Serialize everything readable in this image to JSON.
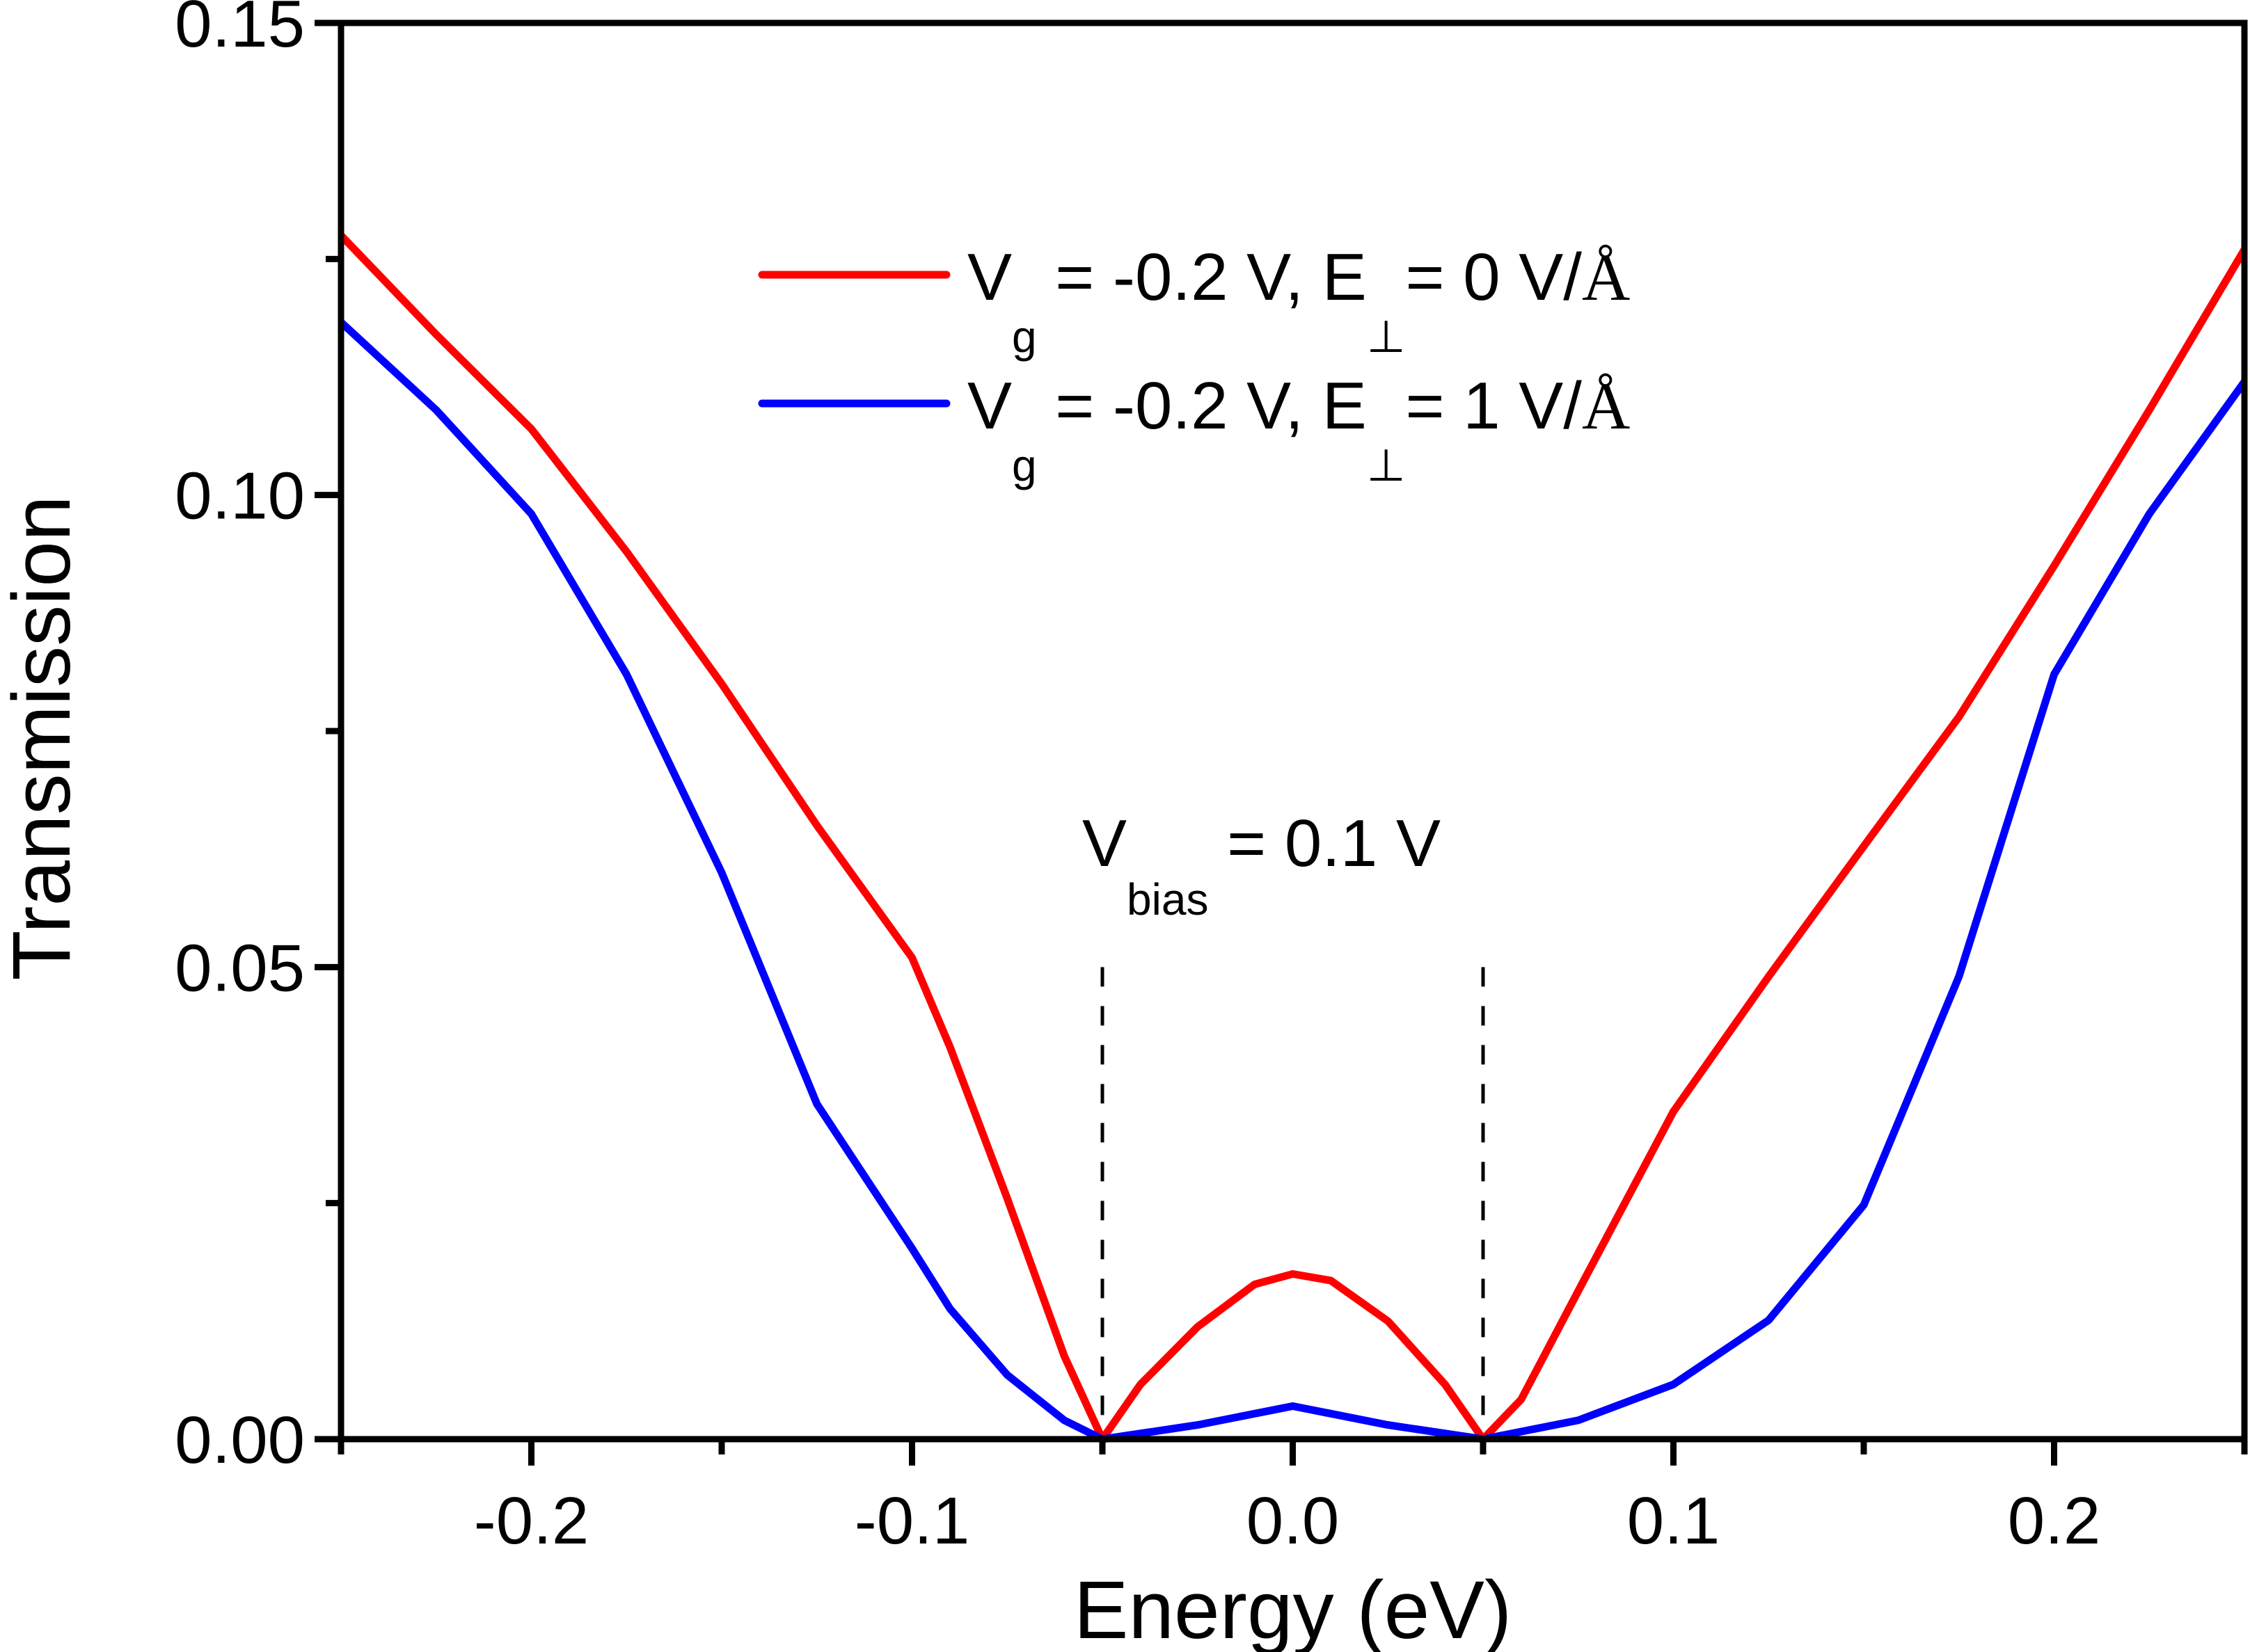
{
  "chart_data": {
    "type": "line",
    "title": "",
    "xlabel": "Energy (eV)",
    "ylabel": "Transmission",
    "xlim": [
      -0.25,
      0.25
    ],
    "ylim": [
      0.0,
      0.15
    ],
    "x_ticks": [
      -0.2,
      -0.1,
      0.0,
      0.1,
      0.2
    ],
    "x_tick_labels": [
      "-0.2",
      "-0.1",
      "0.0",
      "0.1",
      "0.2"
    ],
    "x_minor_ticks": [
      -0.25,
      -0.15,
      -0.05,
      0.05,
      0.15,
      0.25
    ],
    "y_ticks": [
      0.0,
      0.05,
      0.1,
      0.15
    ],
    "y_tick_labels": [
      "0.00",
      "0.05",
      "0.10",
      "0.15"
    ],
    "y_minor_ticks": [
      0.025,
      0.075,
      0.125
    ],
    "grid": false,
    "legend_position": "top-center",
    "series": [
      {
        "name": "Vg = -0.2 V, E⊥ = 0 V/Å",
        "legend": {
          "main": "V",
          "sub": "g",
          "mid": " = -0.2 V, E",
          "sub2": "⊥",
          "tail": "= 0 V/",
          "unit": "Å"
        },
        "color": "#ff0000",
        "x": [
          -0.25,
          -0.225,
          -0.2,
          -0.175,
          -0.15,
          -0.125,
          -0.1,
          -0.09,
          -0.075,
          -0.06,
          -0.05,
          -0.04,
          -0.025,
          -0.01,
          0.0,
          0.01,
          0.025,
          0.04,
          0.05,
          0.06,
          0.075,
          0.1,
          0.125,
          0.15,
          0.175,
          0.2,
          0.225,
          0.25
        ],
        "y": [
          0.1275,
          0.117,
          0.107,
          0.094,
          0.08,
          0.065,
          0.051,
          0.0415,
          0.0255,
          0.0088,
          0.0,
          0.0058,
          0.0119,
          0.0164,
          0.0175,
          0.0168,
          0.0125,
          0.0058,
          0.0,
          0.0042,
          0.0157,
          0.0347,
          0.049,
          0.0628,
          0.0765,
          0.0925,
          0.109,
          0.126
        ]
      },
      {
        "name": "Vg = -0.2 V, E⊥ = 1 V/Å",
        "legend": {
          "main": "V",
          "sub": "g",
          "mid": " = -0.2 V, E",
          "sub2": "⊥",
          "tail": "= 1 V/",
          "unit": "Å"
        },
        "color": "#0000ff",
        "x": [
          -0.25,
          -0.225,
          -0.2,
          -0.175,
          -0.15,
          -0.125,
          -0.1,
          -0.09,
          -0.075,
          -0.06,
          -0.05,
          -0.025,
          0.0,
          0.025,
          0.05,
          0.075,
          0.1,
          0.125,
          0.15,
          0.175,
          0.2,
          0.225,
          0.25
        ],
        "y": [
          0.1183,
          0.109,
          0.098,
          0.081,
          0.06,
          0.0355,
          0.0202,
          0.0138,
          0.0068,
          0.002,
          0.0,
          0.0015,
          0.0035,
          0.0015,
          0.0,
          0.002,
          0.0058,
          0.0126,
          0.0248,
          0.049,
          0.081,
          0.098,
          0.112
        ]
      }
    ],
    "vertical_markers": [
      {
        "x": -0.05,
        "style": "dashed",
        "color": "#000000",
        "y_from": 0.0,
        "y_to": 0.05
      },
      {
        "x": 0.05,
        "style": "dashed",
        "color": "#000000",
        "y_from": 0.0,
        "y_to": 0.05
      }
    ],
    "annotations": [
      {
        "text": "Vbias = 0.1 V",
        "main": "V",
        "sub": "bias",
        "tail": " = 0.1 V",
        "x": 0.0,
        "y": 0.063
      }
    ]
  }
}
